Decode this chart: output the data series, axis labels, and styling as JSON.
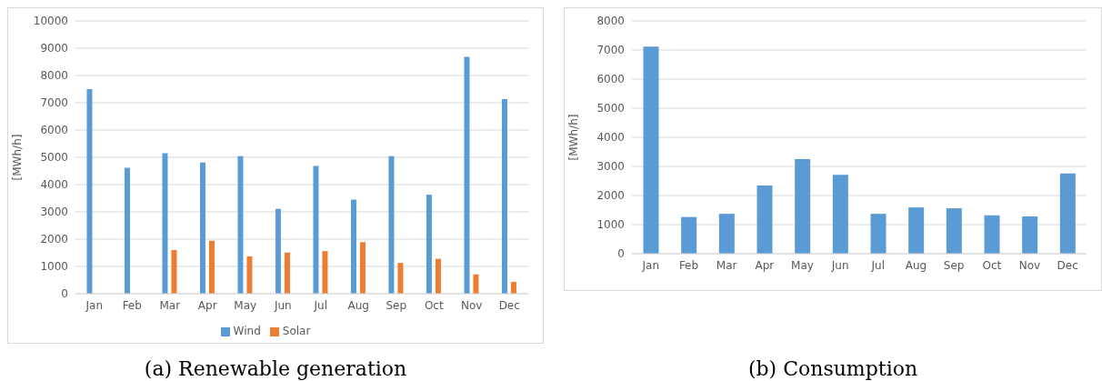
{
  "chart_data": [
    {
      "type": "bar",
      "ylabel": "[MWh/h]",
      "categories": [
        "Jan",
        "Feb",
        "Mar",
        "Apr",
        "May",
        "Jun",
        "Jul",
        "Aug",
        "Sep",
        "Oct",
        "Nov",
        "Dec"
      ],
      "series": [
        {
          "name": "Wind",
          "color": "#5b9bd5",
          "values": [
            7500,
            4620,
            5150,
            4810,
            5040,
            3110,
            4680,
            3450,
            5040,
            3630,
            8680,
            7130
          ]
        },
        {
          "name": "Solar",
          "color": "#ed7d31",
          "values": [
            0,
            0,
            1600,
            1940,
            1370,
            1510,
            1560,
            1890,
            1130,
            1280,
            710,
            430
          ]
        }
      ],
      "ylim": [
        0,
        10000
      ],
      "yticks": [
        0,
        1000,
        2000,
        3000,
        4000,
        5000,
        6000,
        7000,
        8000,
        9000,
        10000
      ],
      "grid": "y",
      "legend": "bottom",
      "annotations": [
        "(a) Renewable generation"
      ]
    },
    {
      "type": "bar",
      "ylabel": "[MWh/h]",
      "categories": [
        "Jan",
        "Feb",
        "Mar",
        "Apr",
        "May",
        "Jun",
        "Jul",
        "Aug",
        "Sep",
        "Oct",
        "Nov",
        "Dec"
      ],
      "series": [
        {
          "color": "#5b9bd5",
          "values": [
            7120,
            1260,
            1370,
            2340,
            3250,
            2710,
            1370,
            1590,
            1560,
            1320,
            1280,
            2760
          ]
        }
      ],
      "ylim": [
        0,
        8000
      ],
      "yticks": [
        0,
        1000,
        2000,
        3000,
        4000,
        5000,
        6000,
        7000,
        8000
      ],
      "grid": "y",
      "annotations": [
        "(b) Consumption"
      ]
    }
  ]
}
